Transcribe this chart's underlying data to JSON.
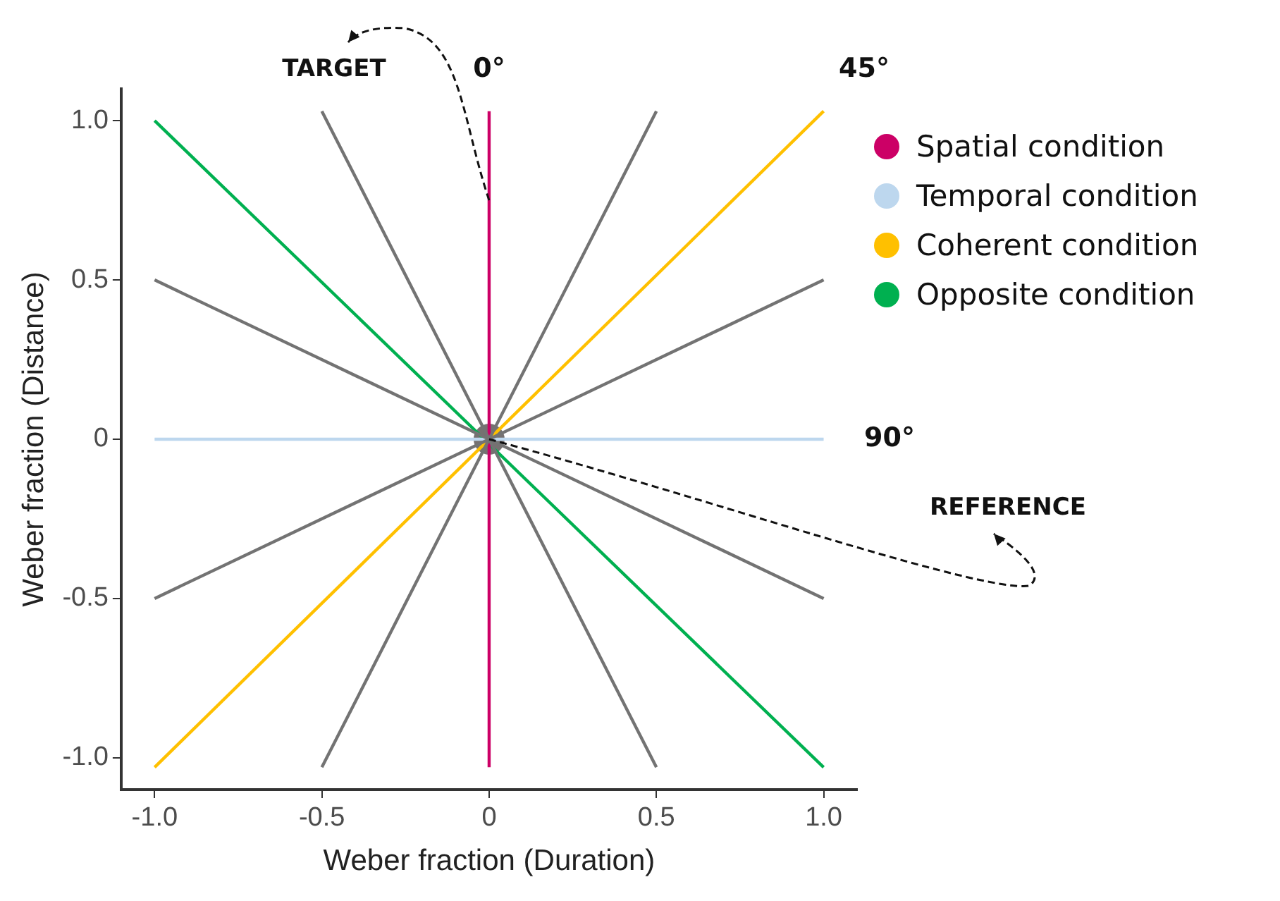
{
  "chart_data": {
    "type": "line",
    "xlabel": "Weber fraction (Duration)",
    "ylabel": "Weber fraction (Distance)",
    "xlim": [
      -1.1,
      1.1
    ],
    "ylim": [
      -1.1,
      1.1
    ],
    "xticks": [
      {
        "value": -1,
        "label": "-1.0"
      },
      -0.5,
      0,
      0.5,
      {
        "value": 1,
        "label": "1.0"
      }
    ],
    "yticks": [
      {
        "value": -1,
        "label": "-1.0"
      },
      -0.5,
      0,
      0.5,
      {
        "value": 1,
        "label": "1.0"
      }
    ],
    "grid": false,
    "legend": "top right",
    "marker": "none",
    "line_style": "solid",
    "series": [
      {
        "color": "#737373",
        "x": [
          -0.5,
          0.5
        ],
        "values": [
          1.03,
          -1.03
        ]
      },
      {
        "color": "#737373",
        "x": [
          -0.5,
          0.5
        ],
        "values": [
          -1.03,
          1.03
        ]
      },
      {
        "color": "#737373",
        "x": [
          -1,
          1
        ],
        "values": [
          0.5,
          -0.5
        ]
      },
      {
        "color": "#737373",
        "x": [
          -1,
          1
        ],
        "values": [
          -0.5,
          0.5
        ]
      },
      {
        "name": "Spatial condition",
        "color": "#cc0066",
        "x": [
          0,
          0
        ],
        "values": [
          -1.03,
          1.03
        ]
      },
      {
        "name": "Temporal condition",
        "color": "#bdd7ee",
        "x": [
          -1,
          1
        ],
        "values": [
          0,
          0
        ]
      },
      {
        "name": "Coherent condition",
        "color": "#ffc000",
        "x": [
          -1,
          1
        ],
        "values": [
          -1.03,
          1.03
        ]
      },
      {
        "name": "Opposite condition",
        "color": "#00b050",
        "x": [
          -1,
          1
        ],
        "values": [
          1,
          -1.03
        ]
      },
      {
        "type": "scatter",
        "marker": "circle",
        "color": "#767171",
        "x": [
          0
        ],
        "values": [
          0
        ]
      }
    ],
    "annotations": [
      "0°",
      "45°",
      "90°",
      {
        "text": "TARGET",
        "x": 0,
        "y": 0.75
      },
      {
        "text": "REFERENCE",
        "x": 0,
        "y": 0
      }
    ]
  }
}
